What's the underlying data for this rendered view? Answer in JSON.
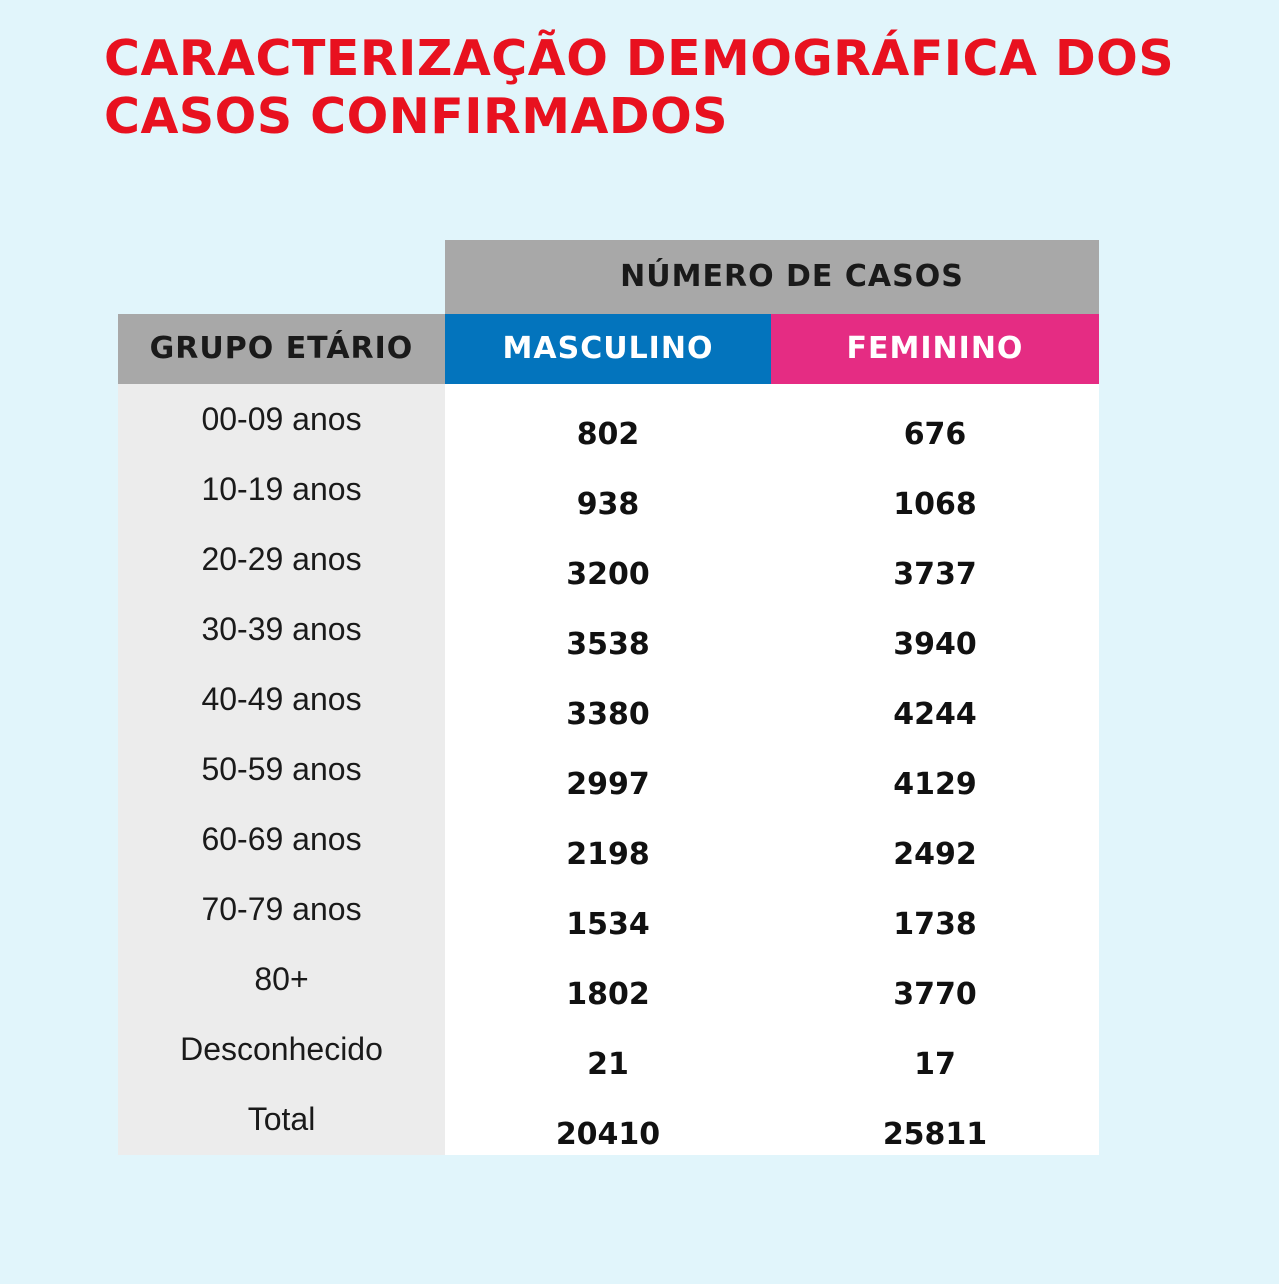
{
  "title": {
    "line1": "CARACTERIZAÇÃO DEMOGRÁFICA DOS",
    "line2": "CASOS CONFIRMADOS"
  },
  "table": {
    "top_header": "NÚMERO DE CASOS",
    "col_group": "GRUPO ETÁRIO",
    "col_male": "MASCULINO",
    "col_female": "FEMININO"
  },
  "colors": {
    "background": "#e1f5fb",
    "title": "#e8111f",
    "header_gray": "#a8a8a8",
    "male": "#0374bd",
    "female": "#e52c83",
    "label_column": "#ececec"
  },
  "chart_data": {
    "type": "table",
    "title": "CARACTERIZAÇÃO DEMOGRÁFICA DOS CASOS CONFIRMADOS",
    "columns": [
      "GRUPO ETÁRIO",
      "MASCULINO",
      "FEMININO"
    ],
    "categories": [
      "00-09 anos",
      "10-19 anos",
      "20-29 anos",
      "30-39 anos",
      "40-49 anos",
      "50-59 anos",
      "60-69 anos",
      "70-79 anos",
      "80+",
      "Desconhecido",
      "Total"
    ],
    "series": [
      {
        "name": "MASCULINO",
        "values": [
          "802",
          "938",
          "3200",
          "3538",
          "3380",
          "2997",
          "2198",
          "1534",
          "1802",
          "21",
          "20410"
        ]
      },
      {
        "name": "FEMININO",
        "values": [
          "676",
          "1068",
          "3737",
          "3940",
          "4244",
          "4129",
          "2492",
          "1738",
          "3770",
          "17",
          "25811"
        ]
      }
    ]
  }
}
